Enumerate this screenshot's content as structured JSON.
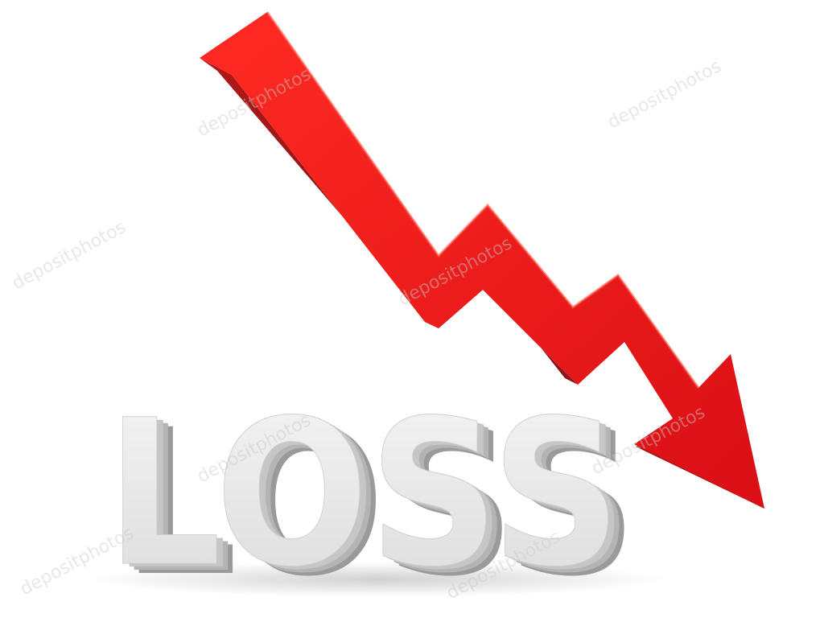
{
  "scene": {
    "word": "LOSS",
    "arrow_color": "#e8141c",
    "arrow_shadow_color": "#9e1a1a",
    "text_color": "#e6e6e6",
    "text_shadow_color": "#a8a8a8",
    "background": "#ffffff",
    "watermark": "depositphotos"
  }
}
